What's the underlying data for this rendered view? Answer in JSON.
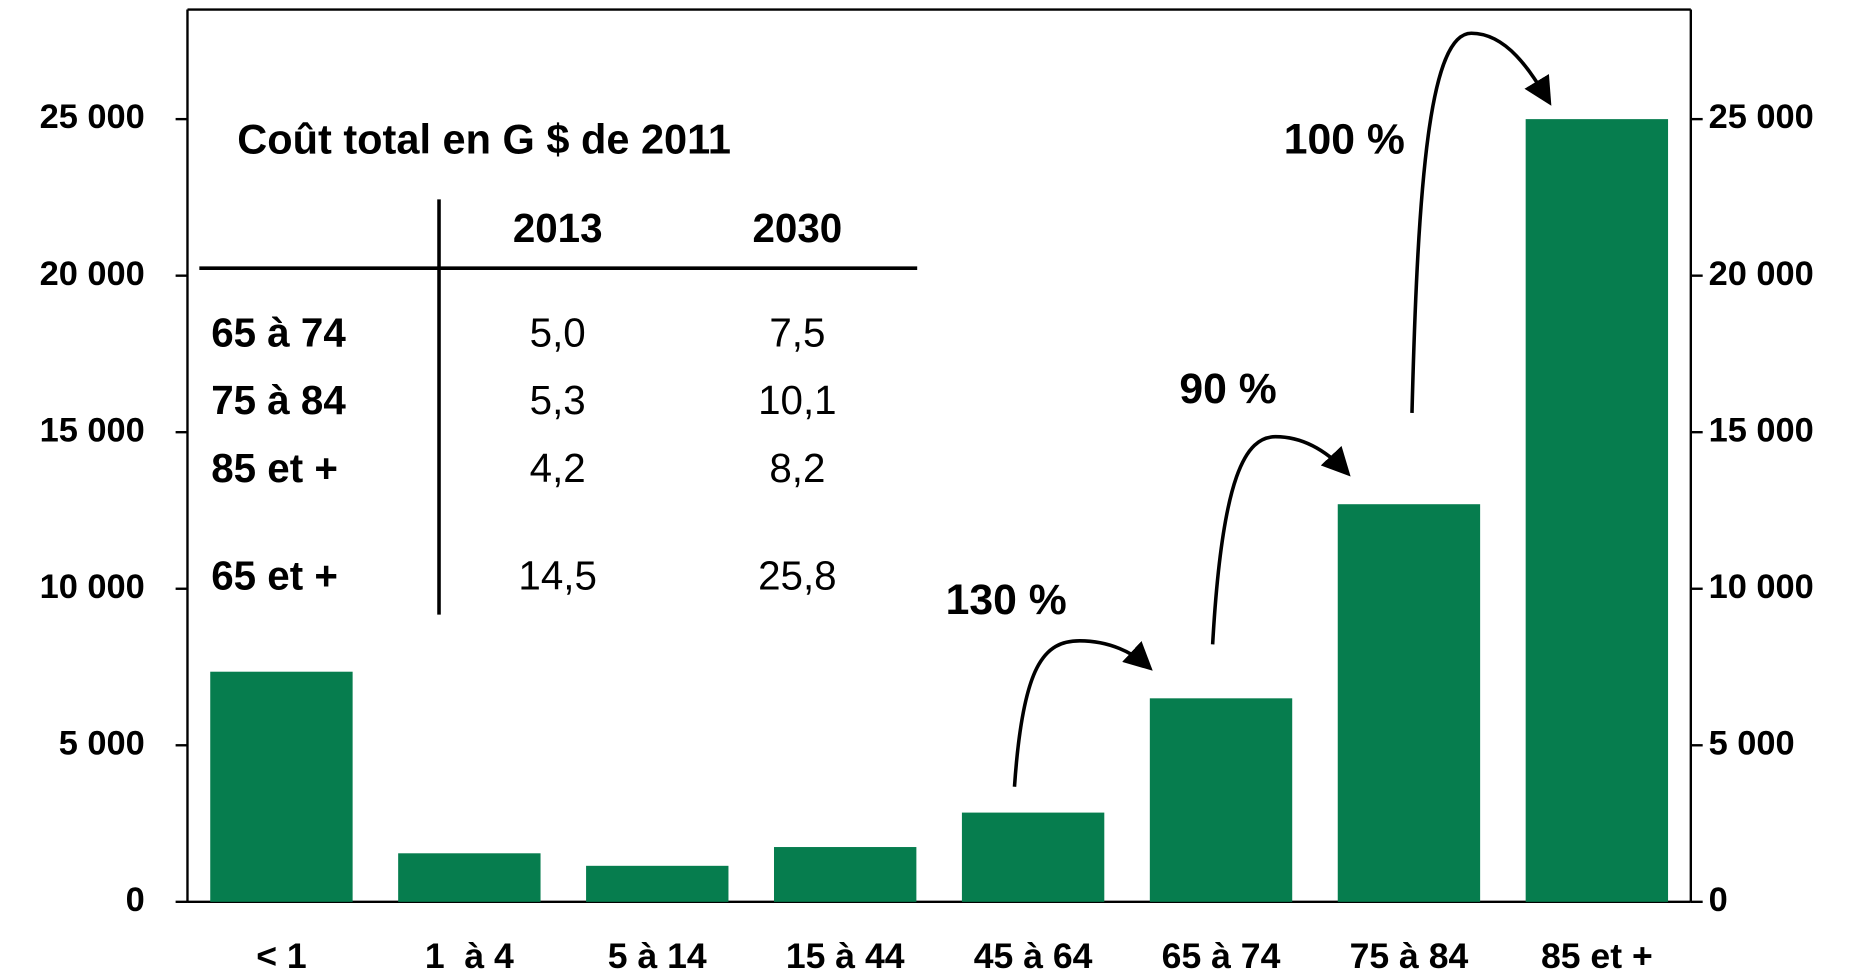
{
  "chart_data": {
    "type": "bar",
    "categories": [
      "< 1",
      "1  à 4",
      "5 à 14",
      "15 à 44",
      "45 à 64",
      "65 à 74",
      "75 à 84",
      "85 et +"
    ],
    "values": [
      7350,
      1550,
      1150,
      1750,
      2850,
      6500,
      12700,
      25000
    ],
    "color": "#067d4e",
    "ylim": [
      0,
      28500
    ],
    "yticks": [
      0,
      {
        "value": 5000,
        "label": "5 000"
      },
      {
        "value": 10000,
        "label": "10 000"
      },
      {
        "value": 15000,
        "label": "15 000"
      },
      {
        "value": 20000,
        "label": "20 000"
      },
      {
        "value": 25000,
        "label": "25 000"
      }
    ],
    "y2lim": [
      0,
      28500
    ],
    "y2ticks": [
      0,
      {
        "value": 5000,
        "label": "5 000"
      },
      {
        "value": 10000,
        "label": "10 000"
      },
      {
        "value": 15000,
        "label": "15 000"
      },
      {
        "value": 20000,
        "label": "20 000"
      },
      {
        "value": 25000,
        "label": "25 000"
      }
    ],
    "annotations": [
      "130 %",
      "90 %",
      "100 %"
    ],
    "table": {
      "title": "Coût total en G $ de 2011",
      "columns": [
        "2013",
        "2030"
      ],
      "rows": [
        {
          "label": "65 à 74",
          "values": [
            "5,0",
            "7,5"
          ]
        },
        {
          "label": "75 à 84",
          "values": [
            "5,3",
            "10,1"
          ]
        },
        {
          "label": "85 et +",
          "values": [
            "4,2",
            "8,2"
          ]
        },
        {
          "label": "65 et +",
          "values": [
            "14,5",
            "25,8"
          ]
        }
      ]
    }
  }
}
